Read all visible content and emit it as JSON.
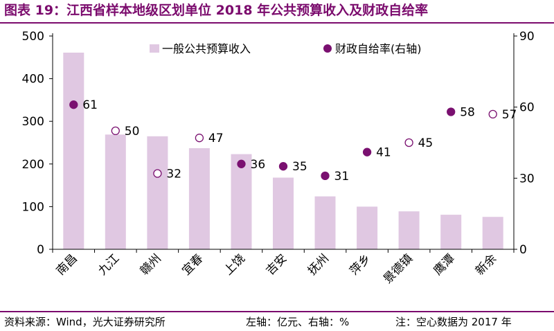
{
  "title": "图表 19：江西省样本地级区划单位 2018 年公共预算收入及财政自给率",
  "footer": {
    "source": "资料来源：Wind，光大证券研究所",
    "axes": "左轴：亿元、右轴：%",
    "note": "注：空心数据为 2017 年"
  },
  "colors": {
    "title": "#7b0b6d",
    "bar": "#e0c8e2",
    "point": "#7a1070"
  },
  "chart_data": {
    "type": "bar+scatter",
    "categories": [
      "南昌",
      "九江",
      "赣州",
      "宜春",
      "上饶",
      "吉安",
      "抚州",
      "萍乡",
      "景德镇",
      "鹰潭",
      "新余"
    ],
    "series": [
      {
        "name": "一般公共预算收入",
        "type": "bar",
        "axis": "left",
        "values": [
          461,
          269,
          265,
          237,
          223,
          168,
          124,
          100,
          89,
          81,
          76
        ]
      },
      {
        "name": "财政自给率(右轴)",
        "type": "scatter",
        "axis": "right",
        "values": [
          61,
          50,
          32,
          47,
          36,
          35,
          31,
          41,
          45,
          58,
          57
        ],
        "hollow": [
          false,
          true,
          true,
          true,
          false,
          false,
          false,
          false,
          true,
          false,
          true
        ]
      }
    ],
    "left_axis": {
      "min": 0,
      "max": 500,
      "ticks": [
        0,
        100,
        200,
        300,
        400,
        500
      ]
    },
    "right_axis": {
      "min": 0,
      "max": 90,
      "ticks": [
        0,
        30,
        60,
        90
      ]
    },
    "legend": [
      "一般公共预算收入",
      "财政自给率(右轴)"
    ]
  }
}
